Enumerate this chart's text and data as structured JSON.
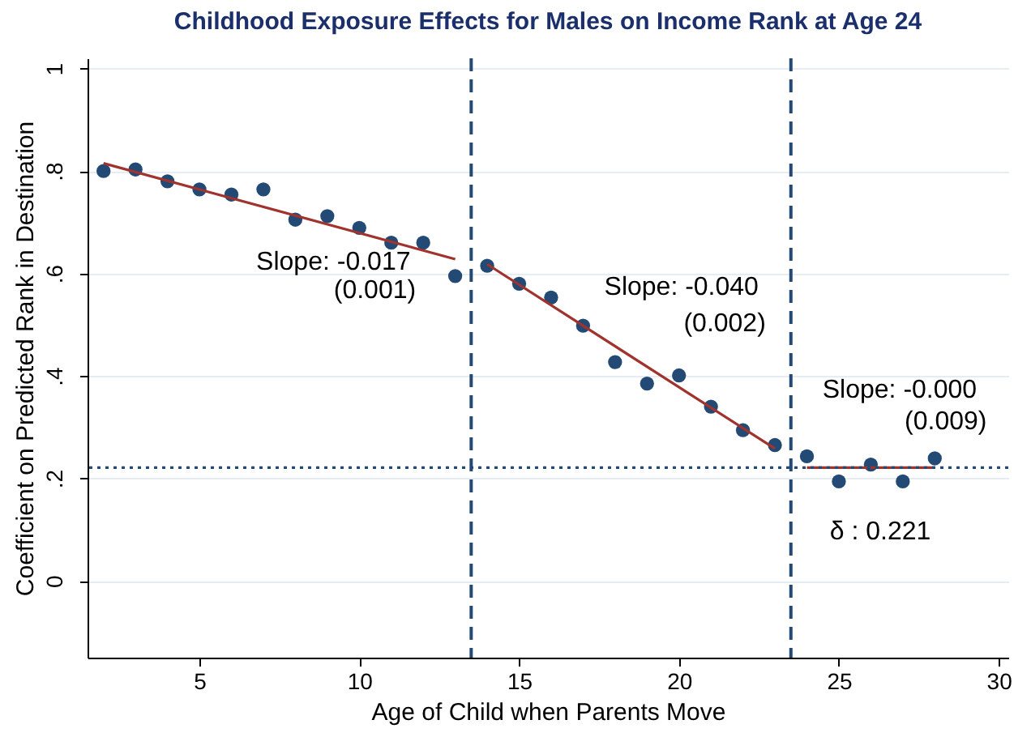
{
  "chart_data": {
    "type": "scatter",
    "title": "Childhood Exposure Effects for Males on Income Rank at Age 24",
    "xlabel": "Age of Child when Parents Move",
    "ylabel": "Coefficient on Predicted Rank in Destination",
    "xlim": [
      1.5,
      30.3
    ],
    "xticks": [
      5,
      10,
      15,
      20,
      25,
      30
    ],
    "ylim": [
      -0.15,
      1.02
    ],
    "yticks": [
      0,
      {
        "value": 0.2,
        "label": ".2"
      },
      {
        "value": 0.4,
        "label": ".4"
      },
      {
        "value": 0.6,
        "label": ".6"
      },
      {
        "value": 0.8,
        "label": ".8"
      },
      1
    ],
    "grid": "y",
    "marker": "circle",
    "series": [
      {
        "color": "#234a75",
        "x": [
          2,
          3,
          4,
          5,
          6,
          7,
          8,
          9,
          10,
          11,
          12,
          13,
          14,
          15,
          16,
          17,
          18,
          19,
          20,
          21,
          22,
          23,
          24,
          25,
          26,
          27,
          28
        ],
        "values": [
          0.8,
          0.803,
          0.78,
          0.764,
          0.754,
          0.764,
          0.705,
          0.712,
          0.689,
          0.66,
          0.66,
          0.595,
          0.615,
          0.58,
          0.553,
          0.498,
          0.427,
          0.385,
          0.401,
          0.34,
          0.294,
          0.265,
          0.243,
          0.194,
          0.227,
          0.194,
          0.239
        ]
      },
      {
        "type": "line",
        "color": "#a0332e",
        "marker": "none",
        "x": [
          2,
          13
        ],
        "values": [
          0.815,
          0.628
        ]
      },
      {
        "type": "line",
        "color": "#a0332e",
        "marker": "none",
        "x": [
          14,
          23
        ],
        "values": [
          0.618,
          0.258
        ]
      },
      {
        "type": "line",
        "color": "#a0332e",
        "marker": "none",
        "x": [
          24,
          28
        ],
        "values": [
          0.221,
          0.221
        ]
      }
    ],
    "ref_lines": [
      {
        "axis": "x",
        "value": 13.5,
        "color": "#234a75",
        "line_style": "dashed"
      },
      {
        "axis": "x",
        "value": 23.5,
        "color": "#234a75",
        "line_style": "dashed"
      },
      {
        "axis": "y",
        "value": 0.221,
        "color": "#234a75",
        "line_style": "dotted"
      }
    ],
    "annotations": [
      "Slope: -0.017",
      "(0.001)",
      "Slope: -0.040",
      "(0.002)",
      "Slope: -0.000",
      "(0.009)",
      "δ : 0.221"
    ]
  }
}
